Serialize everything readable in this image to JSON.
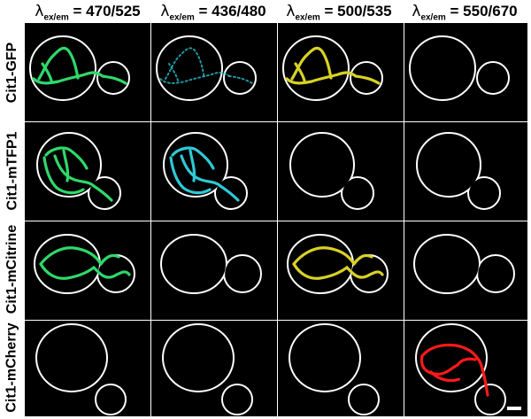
{
  "columns": [
    {
      "lambda": "λ",
      "sub": "ex/em",
      "value": " = 470/525"
    },
    {
      "lambda": "λ",
      "sub": "ex/em",
      "value": " = 436/480"
    },
    {
      "lambda": "λ",
      "sub": "ex/em",
      "value": " = 500/535"
    },
    {
      "lambda": "λ",
      "sub": "ex/em",
      "value": " = 550/670"
    }
  ],
  "rows": [
    {
      "label": "Cit1-GFP",
      "signal": [
        true,
        true,
        true,
        false
      ],
      "shape": "A"
    },
    {
      "label": "Cit1-mTFP1",
      "signal": [
        true,
        true,
        false,
        false
      ],
      "shape": "B"
    },
    {
      "label": "Cit1-mCitrine",
      "signal": [
        true,
        false,
        true,
        false
      ],
      "shape": "C"
    },
    {
      "label": "Cit1-mCherry",
      "signal": [
        false,
        false,
        false,
        true
      ],
      "shape": "D"
    }
  ],
  "channel_colors": [
    "#2fd86a",
    "#2ec9d6",
    "#d9d223",
    "#ff1a1a"
  ],
  "outline_color": "#ffffff",
  "panel_background": "#000000",
  "scale_bar": true
}
